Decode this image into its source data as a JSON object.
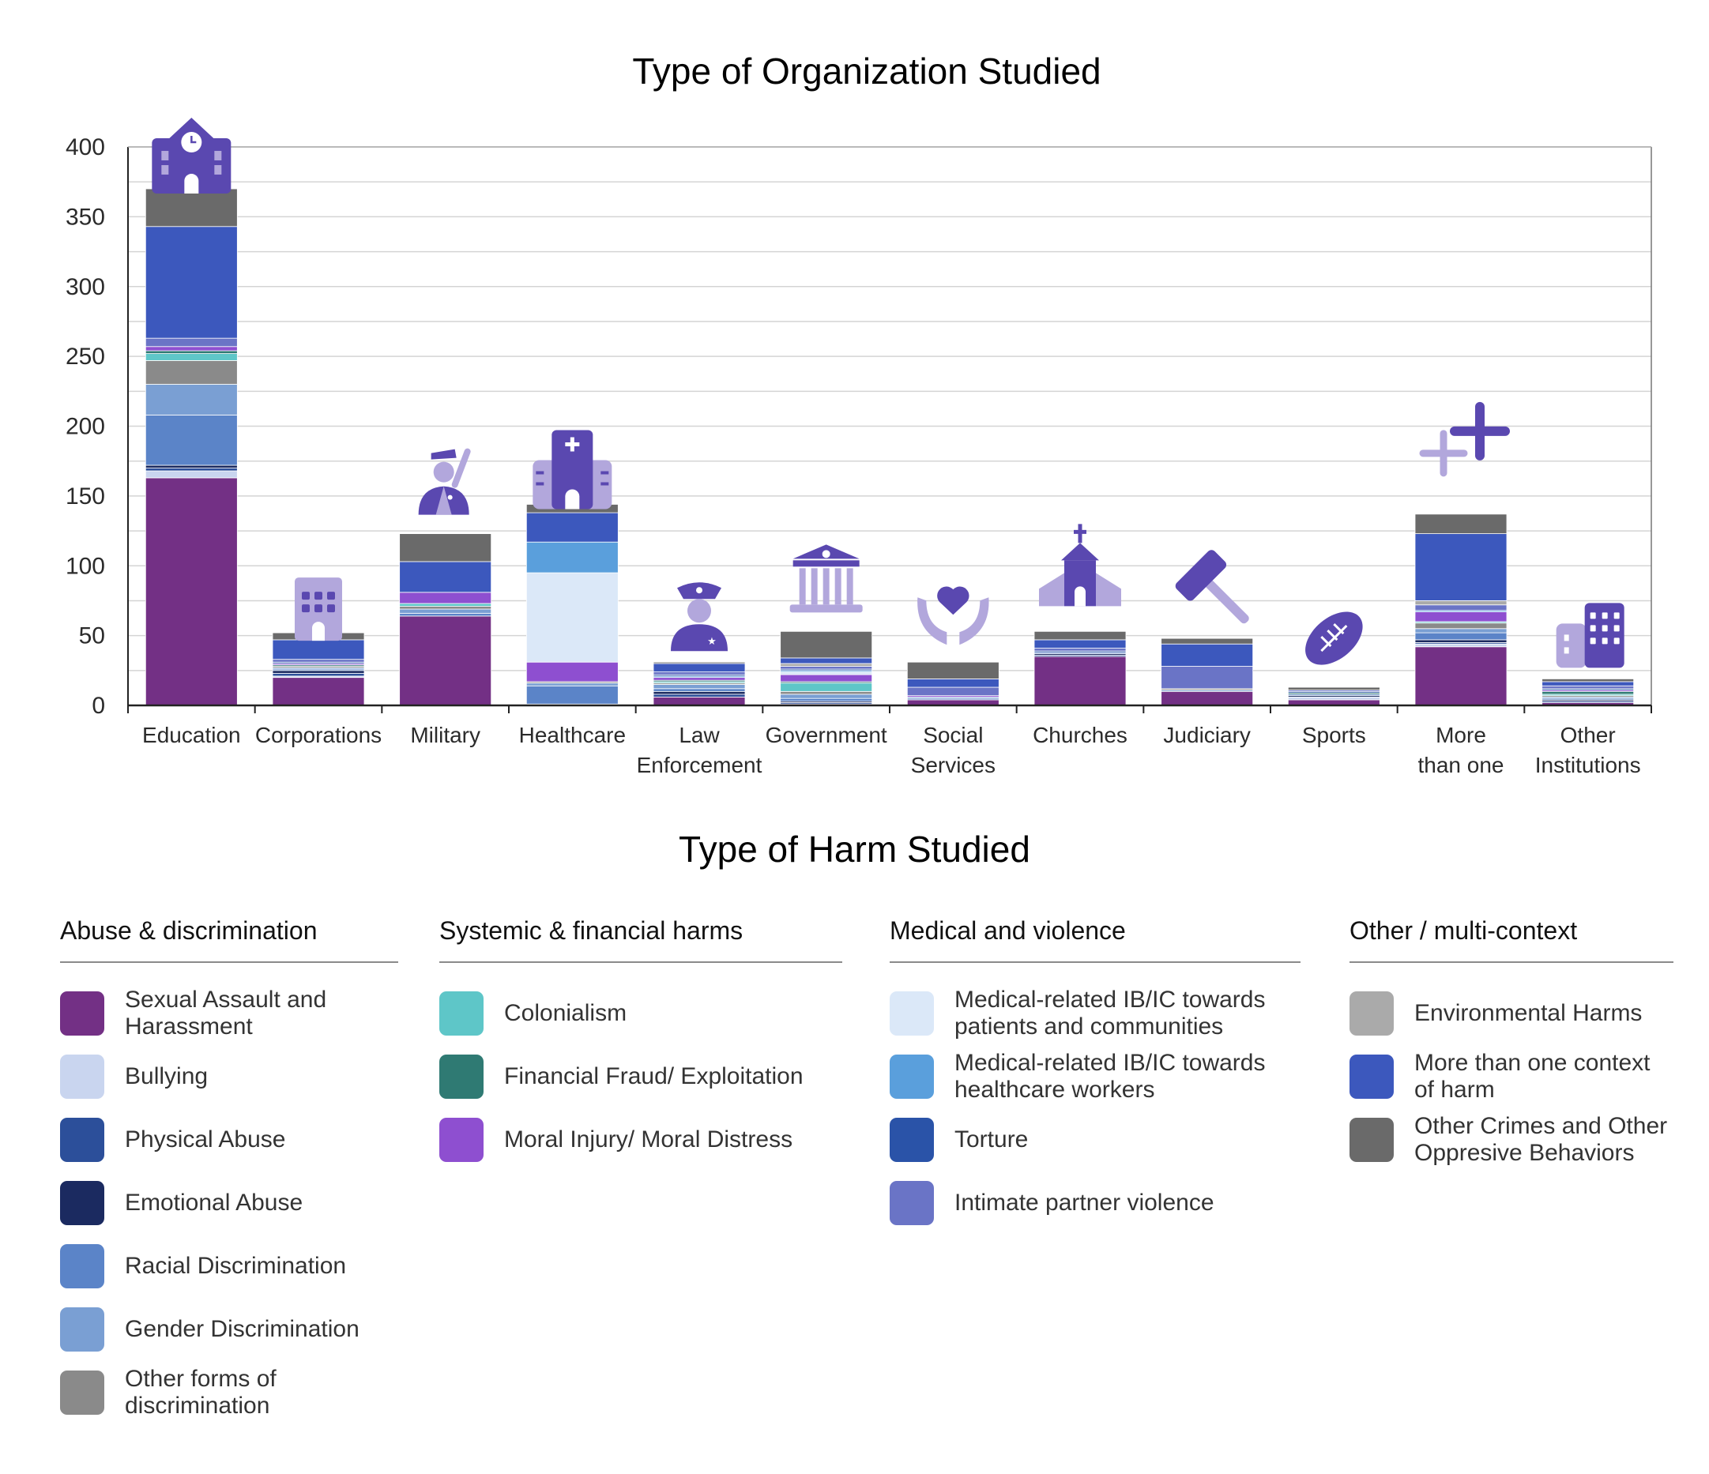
{
  "chart_data": {
    "type": "bar",
    "stacked": true,
    "title": "Type of Organization Studied",
    "xlabel": "",
    "ylabel": "",
    "ylim": [
      0,
      400
    ],
    "yticks": [
      0,
      50,
      100,
      150,
      200,
      250,
      300,
      350,
      400
    ],
    "grid": true,
    "categories": [
      "Education",
      "Corporations",
      "Military",
      "Healthcare",
      "Law Enforcement",
      "Government",
      "Social Services",
      "Churches",
      "Judiciary",
      "Sports",
      "More than one",
      "Other Institutions"
    ],
    "category_icons": [
      "school-icon",
      "office-building-icon",
      "soldier-icon",
      "hospital-icon",
      "police-officer-icon",
      "government-building-icon",
      "caring-hands-icon",
      "church-icon",
      "gavel-icon",
      "football-icon",
      "plus-signs-icon",
      "buildings-icon"
    ],
    "series": [
      {
        "name": "Sexual Assault and Harassment",
        "color": "#733085",
        "values": [
          163,
          20,
          64,
          0,
          6,
          1,
          4,
          35,
          10,
          4,
          42,
          2
        ]
      },
      {
        "name": "Bullying",
        "color": "#c9d5ef",
        "values": [
          5,
          1,
          0,
          1,
          0,
          0,
          0,
          0,
          0,
          2,
          2,
          0
        ]
      },
      {
        "name": "Physical Abuse",
        "color": "#2c4f9a",
        "values": [
          2,
          2,
          0,
          0,
          2,
          1,
          0,
          1,
          0,
          0,
          1,
          1
        ]
      },
      {
        "name": "Emotional Abuse",
        "color": "#1b2a60",
        "values": [
          2,
          2,
          0,
          0,
          2,
          1,
          0,
          1,
          0,
          1,
          2,
          1
        ]
      },
      {
        "name": "Racial Discrimination",
        "color": "#5b84c8",
        "values": [
          36,
          1,
          2,
          13,
          2,
          2,
          1,
          1,
          0,
          1,
          5,
          1
        ]
      },
      {
        "name": "Gender Discrimination",
        "color": "#7a9fd3",
        "values": [
          22,
          1,
          3,
          2,
          3,
          3,
          1,
          0,
          1,
          0,
          3,
          1
        ]
      },
      {
        "name": "Other forms of discrimination",
        "color": "#8a8a8a",
        "values": [
          17,
          1,
          2,
          1,
          1,
          2,
          0,
          0,
          1,
          0,
          4,
          1
        ]
      },
      {
        "name": "Colonialism",
        "color": "#5ec6c8",
        "values": [
          5,
          0,
          2,
          0,
          1,
          6,
          0,
          0,
          0,
          0,
          1,
          1
        ]
      },
      {
        "name": "Financial Fraud/ Exploitation",
        "color": "#2f7a73",
        "values": [
          2,
          1,
          0,
          0,
          1,
          1,
          0,
          0,
          0,
          1,
          0,
          2
        ]
      },
      {
        "name": "Moral Injury/ Moral Distress",
        "color": "#8e4fd0",
        "values": [
          3,
          1,
          8,
          14,
          2,
          5,
          1,
          0,
          0,
          0,
          7,
          1
        ]
      },
      {
        "name": "Medical-related IB/IC towards patients and communities",
        "color": "#dbe8f8",
        "values": [
          0,
          0,
          0,
          64,
          0,
          2,
          0,
          0,
          0,
          0,
          0,
          0
        ]
      },
      {
        "name": "Medical-related IB/IC towards healthcare workers",
        "color": "#5a9fdc",
        "values": [
          0,
          0,
          0,
          22,
          1,
          1,
          0,
          0,
          0,
          0,
          1,
          0
        ]
      },
      {
        "name": "Torture",
        "color": "#2a53a8",
        "values": [
          0,
          1,
          0,
          0,
          1,
          1,
          0,
          1,
          0,
          1,
          0,
          1
        ]
      },
      {
        "name": "Intimate partner violence",
        "color": "#6a74c6",
        "values": [
          6,
          2,
          0,
          0,
          2,
          2,
          6,
          2,
          16,
          1,
          4,
          2
        ]
      },
      {
        "name": "Environmental Harms",
        "color": "#aaaaaa",
        "values": [
          0,
          0,
          0,
          0,
          0,
          2,
          0,
          0,
          0,
          0,
          3,
          0
        ]
      },
      {
        "name": "More than one context of harm",
        "color": "#3c58bd",
        "values": [
          80,
          14,
          22,
          21,
          6,
          4,
          6,
          6,
          16,
          0,
          48,
          3
        ]
      },
      {
        "name": "Other Crimes and Other Oppresive Behaviors",
        "color": "#6a6a6a",
        "values": [
          27,
          5,
          20,
          6,
          1,
          19,
          12,
          6,
          4,
          2,
          14,
          2
        ]
      }
    ]
  },
  "legend": {
    "title": "Type of Harm Studied",
    "groups": [
      {
        "title": "Abuse & discrimination",
        "items": [
          {
            "label": "Sexual Assault and Harassment",
            "color": "#733085"
          },
          {
            "label": "Bullying",
            "color": "#c9d5ef"
          },
          {
            "label": "Physical Abuse",
            "color": "#2c4f9a"
          },
          {
            "label": "Emotional Abuse",
            "color": "#1b2a60"
          },
          {
            "label": "Racial Discrimination",
            "color": "#5b84c8"
          },
          {
            "label": "Gender Discrimination",
            "color": "#7a9fd3"
          },
          {
            "label": "Other forms of discrimination",
            "color": "#8a8a8a"
          }
        ]
      },
      {
        "title": "Systemic & financial harms",
        "items": [
          {
            "label": "Colonialism",
            "color": "#5ec6c8"
          },
          {
            "label": "Financial Fraud/ Exploitation",
            "color": "#2f7a73"
          },
          {
            "label": "Moral Injury/ Moral Distress",
            "color": "#8e4fd0"
          }
        ]
      },
      {
        "title": "Medical and violence",
        "items": [
          {
            "label": "Medical-related IB/IC towards patients and communities",
            "color": "#dbe8f8"
          },
          {
            "label": "Medical-related IB/IC towards healthcare workers",
            "color": "#5a9fdc"
          },
          {
            "label": "Torture",
            "color": "#2a53a8"
          },
          {
            "label": "Intimate partner violence",
            "color": "#6a74c6"
          }
        ]
      },
      {
        "title": "Other / multi-context",
        "items": [
          {
            "label": "Environmental Harms",
            "color": "#aaaaaa"
          },
          {
            "label": "More than one context of harm",
            "color": "#3c58bd"
          },
          {
            "label": "Other Crimes and Other Oppresive Behaviors",
            "color": "#6a6a6a"
          }
        ]
      }
    ]
  }
}
